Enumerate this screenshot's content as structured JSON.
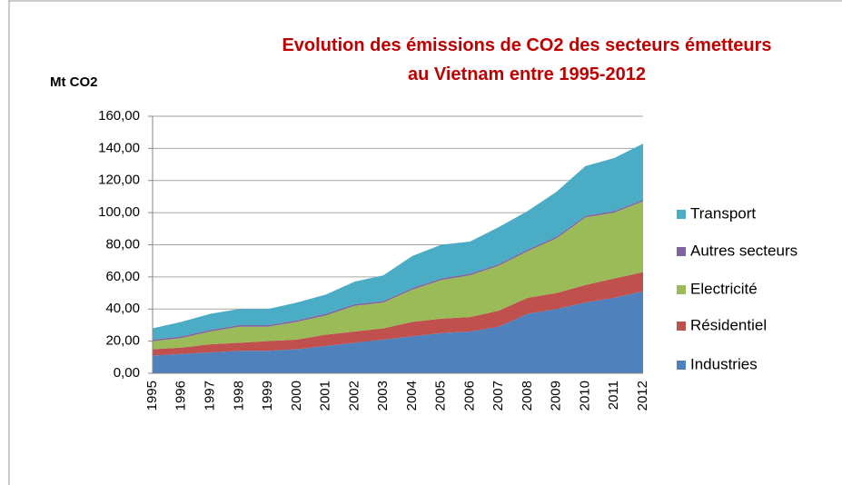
{
  "chart_data": {
    "type": "stacked_area",
    "title": "Evolution des émissions de CO2 des secteurs émetteurs au Vietnam entre 1995-2012",
    "y_label": "Mt CO2",
    "categories": [
      "1995",
      "1996",
      "1997",
      "1998",
      "1999",
      "2000",
      "2001",
      "2002",
      "2003",
      "2004",
      "2005",
      "2006",
      "2007",
      "2008",
      "2009",
      "2010",
      "2011",
      "2012"
    ],
    "series": [
      {
        "name": "Industries",
        "color": "#4f81bd",
        "values": [
          11,
          12,
          13,
          14,
          14,
          15,
          17,
          19,
          21,
          23,
          25,
          26,
          29,
          37,
          40,
          44,
          47,
          51
        ]
      },
      {
        "name": "Résidentiel",
        "color": "#c0504d",
        "values": [
          4,
          4,
          5,
          5,
          6,
          6,
          7,
          7,
          7,
          9,
          9,
          9,
          10,
          10,
          10,
          11,
          12,
          12
        ]
      },
      {
        "name": "Electricité",
        "color": "#9bbb59",
        "values": [
          5,
          6,
          8,
          10,
          9,
          11,
          12,
          16,
          16,
          20,
          24,
          26,
          28,
          29,
          34,
          42,
          41,
          44
        ]
      },
      {
        "name": "Autres secteurs",
        "color": "#8064a2",
        "values": [
          1,
          1,
          1,
          1,
          1,
          1,
          1,
          1,
          1,
          1,
          1,
          1,
          1,
          1,
          1,
          1,
          1,
          1
        ]
      },
      {
        "name": "Transport",
        "color": "#4bacc6",
        "values": [
          7,
          9,
          10,
          10,
          10,
          11,
          12,
          14,
          16,
          20,
          21,
          20,
          23,
          24,
          28,
          31,
          33,
          35
        ]
      }
    ],
    "ylim": [
      0,
      160
    ],
    "yticks": [
      {
        "value": 0,
        "label": "0,00"
      },
      {
        "value": 20,
        "label": "20,00"
      },
      {
        "value": 40,
        "label": "40,00"
      },
      {
        "value": 60,
        "label": "60,00"
      },
      {
        "value": 80,
        "label": "80,00"
      },
      {
        "value": 100,
        "label": "100,00"
      },
      {
        "value": 120,
        "label": "120,00"
      },
      {
        "value": 140,
        "label": "140,00"
      },
      {
        "value": 160,
        "label": "160,00"
      }
    ],
    "grid": true,
    "legend": "right"
  }
}
